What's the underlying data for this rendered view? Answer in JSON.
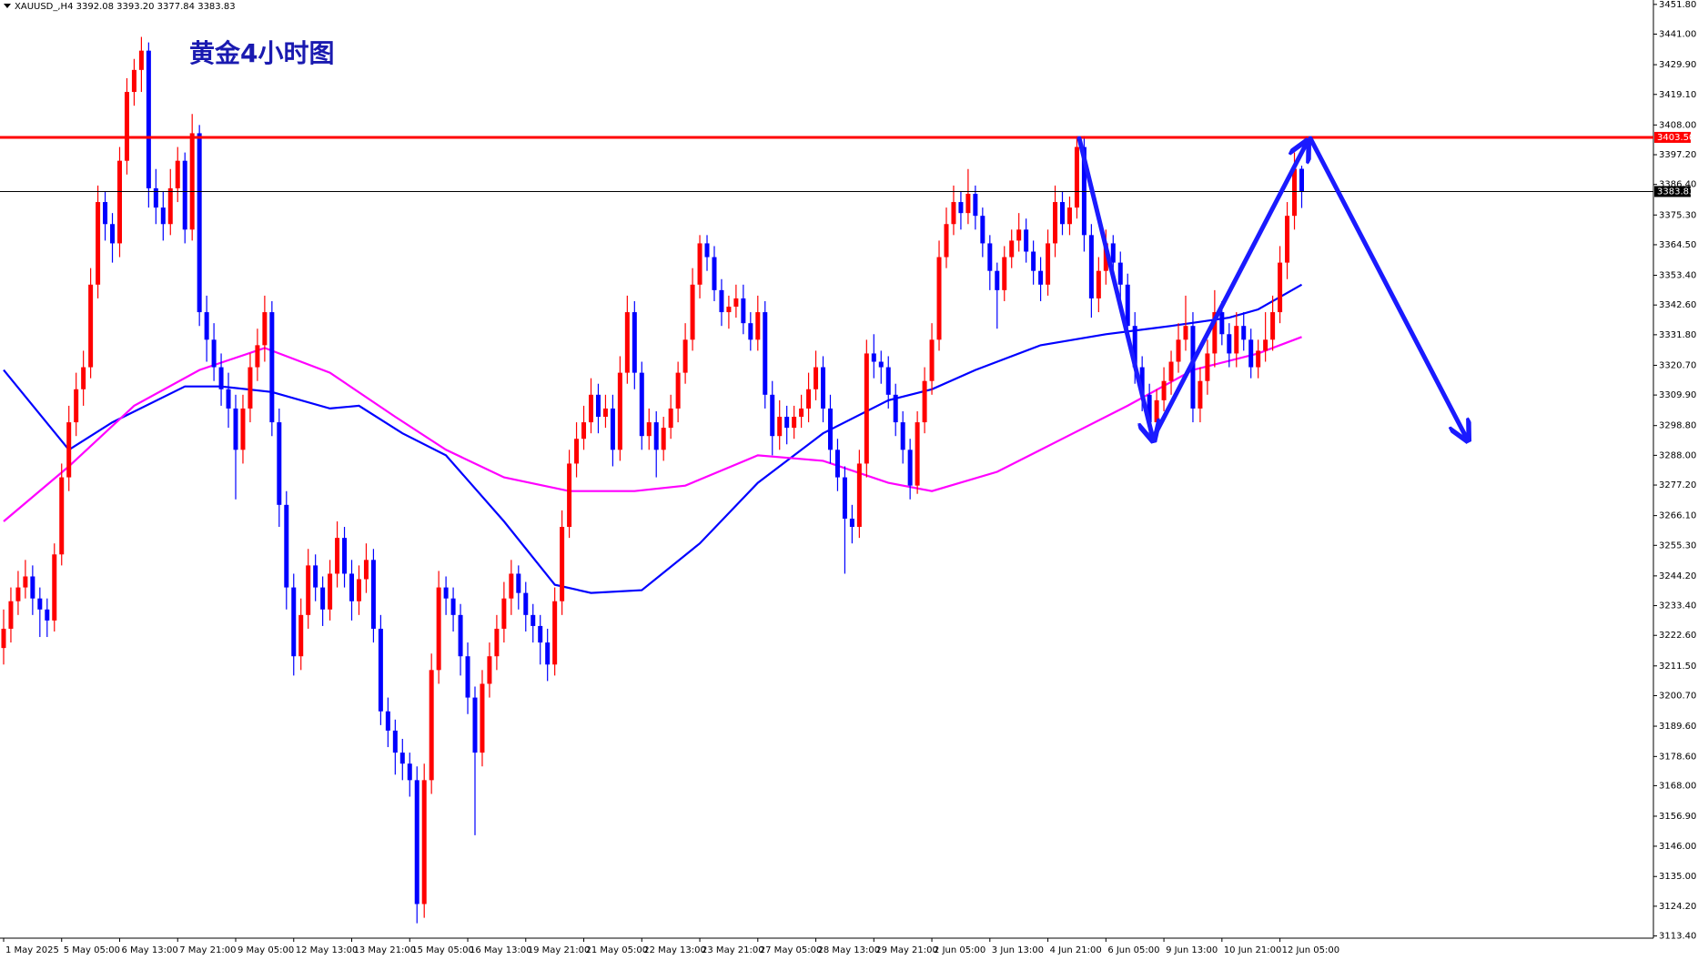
{
  "chart_data": {
    "type": "candlestick",
    "header": "XAUUSD_,H4  3392.08 3393.20 3377.84 3383.83",
    "title": "黄金4小时图",
    "up_color": "#ff0000",
    "down_color": "#0000ff",
    "ohlc": [
      [
        3218,
        3232,
        3212,
        3225
      ],
      [
        3225,
        3240,
        3220,
        3235
      ],
      [
        3235,
        3246,
        3230,
        3240
      ],
      [
        3240,
        3250,
        3236,
        3244
      ],
      [
        3244,
        3248,
        3230,
        3236
      ],
      [
        3236,
        3240,
        3222,
        3232
      ],
      [
        3232,
        3236,
        3222,
        3228
      ],
      [
        3228,
        3256,
        3224,
        3252
      ],
      [
        3252,
        3285,
        3248,
        3280
      ],
      [
        3280,
        3306,
        3275,
        3300
      ],
      [
        3300,
        3318,
        3295,
        3312
      ],
      [
        3312,
        3326,
        3306,
        3320
      ],
      [
        3320,
        3356,
        3316,
        3350
      ],
      [
        3350,
        3386,
        3345,
        3380
      ],
      [
        3380,
        3384,
        3366,
        3372
      ],
      [
        3372,
        3376,
        3358,
        3365
      ],
      [
        3365,
        3400,
        3360,
        3395
      ],
      [
        3395,
        3425,
        3390,
        3420
      ],
      [
        3420,
        3432,
        3415,
        3428
      ],
      [
        3428,
        3440,
        3420,
        3435
      ],
      [
        3435,
        3438,
        3378,
        3385
      ],
      [
        3385,
        3392,
        3372,
        3378
      ],
      [
        3378,
        3384,
        3366,
        3372
      ],
      [
        3372,
        3392,
        3368,
        3385
      ],
      [
        3385,
        3400,
        3380,
        3395
      ],
      [
        3395,
        3398,
        3365,
        3370
      ],
      [
        3370,
        3412,
        3366,
        3405
      ],
      [
        3405,
        3408,
        3335,
        3340
      ],
      [
        3340,
        3346,
        3322,
        3330
      ],
      [
        3330,
        3336,
        3315,
        3320
      ],
      [
        3320,
        3325,
        3306,
        3312
      ],
      [
        3312,
        3318,
        3298,
        3305
      ],
      [
        3305,
        3310,
        3272,
        3290
      ],
      [
        3290,
        3310,
        3285,
        3305
      ],
      [
        3305,
        3325,
        3300,
        3320
      ],
      [
        3320,
        3334,
        3315,
        3328
      ],
      [
        3328,
        3346,
        3322,
        3340
      ],
      [
        3340,
        3344,
        3295,
        3300
      ],
      [
        3300,
        3305,
        3262,
        3270
      ],
      [
        3270,
        3275,
        3232,
        3240
      ],
      [
        3240,
        3245,
        3208,
        3215
      ],
      [
        3215,
        3236,
        3210,
        3230
      ],
      [
        3230,
        3254,
        3225,
        3248
      ],
      [
        3248,
        3252,
        3235,
        3240
      ],
      [
        3240,
        3244,
        3226,
        3232
      ],
      [
        3232,
        3250,
        3228,
        3245
      ],
      [
        3245,
        3264,
        3240,
        3258
      ],
      [
        3258,
        3262,
        3240,
        3245
      ],
      [
        3245,
        3250,
        3228,
        3235
      ],
      [
        3235,
        3248,
        3230,
        3243
      ],
      [
        3243,
        3256,
        3238,
        3250
      ],
      [
        3250,
        3254,
        3220,
        3225
      ],
      [
        3225,
        3230,
        3190,
        3195
      ],
      [
        3195,
        3200,
        3182,
        3188
      ],
      [
        3188,
        3192,
        3172,
        3180
      ],
      [
        3180,
        3185,
        3170,
        3176
      ],
      [
        3176,
        3180,
        3164,
        3170
      ],
      [
        3170,
        3175,
        3118,
        3125
      ],
      [
        3125,
        3176,
        3120,
        3170
      ],
      [
        3170,
        3216,
        3165,
        3210
      ],
      [
        3210,
        3246,
        3205,
        3240
      ],
      [
        3240,
        3244,
        3230,
        3236
      ],
      [
        3236,
        3240,
        3224,
        3230
      ],
      [
        3230,
        3234,
        3208,
        3215
      ],
      [
        3215,
        3220,
        3194,
        3200
      ],
      [
        3200,
        3204,
        3150,
        3180
      ],
      [
        3180,
        3210,
        3175,
        3205
      ],
      [
        3205,
        3220,
        3200,
        3215
      ],
      [
        3215,
        3230,
        3210,
        3225
      ],
      [
        3225,
        3242,
        3220,
        3236
      ],
      [
        3236,
        3250,
        3230,
        3245
      ],
      [
        3245,
        3248,
        3232,
        3238
      ],
      [
        3238,
        3242,
        3224,
        3230
      ],
      [
        3230,
        3234,
        3220,
        3226
      ],
      [
        3226,
        3230,
        3212,
        3220
      ],
      [
        3220,
        3225,
        3206,
        3212
      ],
      [
        3212,
        3240,
        3208,
        3235
      ],
      [
        3235,
        3268,
        3230,
        3262
      ],
      [
        3262,
        3290,
        3258,
        3285
      ],
      [
        3285,
        3300,
        3280,
        3294
      ],
      [
        3294,
        3306,
        3290,
        3300
      ],
      [
        3300,
        3316,
        3296,
        3310
      ],
      [
        3310,
        3314,
        3296,
        3302
      ],
      [
        3302,
        3310,
        3298,
        3305
      ],
      [
        3305,
        3310,
        3284,
        3290
      ],
      [
        3290,
        3324,
        3286,
        3318
      ],
      [
        3318,
        3346,
        3314,
        3340
      ],
      [
        3340,
        3344,
        3312,
        3318
      ],
      [
        3318,
        3322,
        3290,
        3295
      ],
      [
        3295,
        3305,
        3290,
        3300
      ],
      [
        3300,
        3304,
        3280,
        3290
      ],
      [
        3290,
        3302,
        3286,
        3298
      ],
      [
        3298,
        3310,
        3294,
        3305
      ],
      [
        3305,
        3322,
        3300,
        3318
      ],
      [
        3318,
        3336,
        3314,
        3330
      ],
      [
        3330,
        3356,
        3326,
        3350
      ],
      [
        3350,
        3368,
        3345,
        3365
      ],
      [
        3365,
        3368,
        3355,
        3360
      ],
      [
        3360,
        3364,
        3344,
        3348
      ],
      [
        3348,
        3352,
        3335,
        3340
      ],
      [
        3340,
        3346,
        3334,
        3342
      ],
      [
        3342,
        3350,
        3338,
        3345
      ],
      [
        3345,
        3350,
        3332,
        3336
      ],
      [
        3336,
        3340,
        3326,
        3330
      ],
      [
        3330,
        3346,
        3326,
        3340
      ],
      [
        3340,
        3344,
        3305,
        3310
      ],
      [
        3310,
        3315,
        3288,
        3295
      ],
      [
        3295,
        3308,
        3290,
        3302
      ],
      [
        3302,
        3306,
        3292,
        3298
      ],
      [
        3298,
        3306,
        3294,
        3302
      ],
      [
        3302,
        3310,
        3298,
        3305
      ],
      [
        3305,
        3318,
        3300,
        3312
      ],
      [
        3312,
        3326,
        3308,
        3320
      ],
      [
        3320,
        3324,
        3300,
        3305
      ],
      [
        3305,
        3310,
        3285,
        3290
      ],
      [
        3290,
        3294,
        3275,
        3280
      ],
      [
        3280,
        3284,
        3245,
        3265
      ],
      [
        3265,
        3270,
        3256,
        3262
      ],
      [
        3262,
        3290,
        3258,
        3285
      ],
      [
        3285,
        3330,
        3280,
        3325
      ],
      [
        3325,
        3332,
        3316,
        3322
      ],
      [
        3322,
        3326,
        3314,
        3320
      ],
      [
        3320,
        3324,
        3305,
        3310
      ],
      [
        3310,
        3314,
        3295,
        3300
      ],
      [
        3300,
        3304,
        3285,
        3290
      ],
      [
        3290,
        3294,
        3272,
        3277
      ],
      [
        3277,
        3304,
        3274,
        3300
      ],
      [
        3300,
        3320,
        3296,
        3315
      ],
      [
        3315,
        3336,
        3310,
        3330
      ],
      [
        3330,
        3366,
        3326,
        3360
      ],
      [
        3360,
        3378,
        3356,
        3372
      ],
      [
        3372,
        3386,
        3368,
        3380
      ],
      [
        3380,
        3384,
        3370,
        3376
      ],
      [
        3376,
        3392,
        3372,
        3383
      ],
      [
        3383,
        3386,
        3370,
        3375
      ],
      [
        3375,
        3378,
        3360,
        3365
      ],
      [
        3365,
        3368,
        3348,
        3355
      ],
      [
        3355,
        3358,
        3334,
        3348
      ],
      [
        3348,
        3364,
        3344,
        3360
      ],
      [
        3360,
        3370,
        3356,
        3366
      ],
      [
        3366,
        3376,
        3362,
        3370
      ],
      [
        3370,
        3374,
        3358,
        3362
      ],
      [
        3362,
        3366,
        3350,
        3355
      ],
      [
        3355,
        3360,
        3344,
        3350
      ],
      [
        3350,
        3370,
        3346,
        3365
      ],
      [
        3365,
        3386,
        3360,
        3380
      ],
      [
        3380,
        3384,
        3368,
        3372
      ],
      [
        3372,
        3382,
        3368,
        3378
      ],
      [
        3378,
        3404,
        3374,
        3400
      ],
      [
        3400,
        3404,
        3362,
        3368
      ],
      [
        3368,
        3372,
        3338,
        3345
      ],
      [
        3345,
        3360,
        3340,
        3355
      ],
      [
        3355,
        3370,
        3350,
        3365
      ],
      [
        3365,
        3368,
        3352,
        3358
      ],
      [
        3358,
        3362,
        3344,
        3350
      ],
      [
        3350,
        3354,
        3330,
        3335
      ],
      [
        3335,
        3340,
        3314,
        3320
      ],
      [
        3320,
        3324,
        3304,
        3310
      ],
      [
        3310,
        3314,
        3296,
        3300
      ],
      [
        3300,
        3312,
        3296,
        3308
      ],
      [
        3308,
        3320,
        3304,
        3315
      ],
      [
        3315,
        3326,
        3310,
        3322
      ],
      [
        3322,
        3336,
        3318,
        3330
      ],
      [
        3330,
        3346,
        3326,
        3335
      ],
      [
        3335,
        3340,
        3300,
        3305
      ],
      [
        3305,
        3320,
        3300,
        3315
      ],
      [
        3315,
        3330,
        3310,
        3325
      ],
      [
        3325,
        3348,
        3320,
        3340
      ],
      [
        3340,
        3344,
        3328,
        3332
      ],
      [
        3332,
        3336,
        3320,
        3325
      ],
      [
        3325,
        3340,
        3320,
        3335
      ],
      [
        3335,
        3340,
        3326,
        3330
      ],
      [
        3330,
        3334,
        3316,
        3320
      ],
      [
        3320,
        3330,
        3316,
        3326
      ],
      [
        3326,
        3340,
        3322,
        3330
      ],
      [
        3330,
        3346,
        3326,
        3340
      ],
      [
        3340,
        3364,
        3336,
        3358
      ],
      [
        3358,
        3380,
        3352,
        3375
      ],
      [
        3375,
        3398,
        3370,
        3392.08
      ],
      [
        3392.08,
        3393.2,
        3377.84,
        3383.83
      ]
    ],
    "lines": [
      {
        "color": "#0000ff",
        "x": [
          0,
          9,
          15,
          25,
          30,
          37,
          45,
          49,
          55,
          61,
          69,
          76,
          81,
          88,
          96,
          104,
          113,
          122,
          128,
          134,
          143,
          152,
          161,
          169,
          173,
          179
        ],
        "values": [
          3319,
          3290,
          3300,
          3313,
          3313,
          3311,
          3305,
          3306,
          3296,
          3288,
          3264,
          3241,
          3238,
          3239,
          3256,
          3278,
          3296,
          3308,
          3312,
          3319,
          3328,
          3332,
          3335,
          3338,
          3341,
          3350
        ]
      },
      {
        "color": "#ff00ff",
        "x": [
          0,
          9,
          18,
          27,
          36,
          45,
          54,
          61,
          69,
          78,
          87,
          94,
          104,
          113,
          122,
          128,
          137,
          146,
          155,
          164,
          173,
          179
        ],
        "values": [
          3264,
          3284,
          3306,
          3319,
          3327,
          3318,
          3302,
          3290,
          3280,
          3275,
          3275,
          3277,
          3288,
          3286,
          3278,
          3275,
          3282,
          3294,
          3306,
          3319,
          3325,
          3331
        ]
      }
    ],
    "levels": [
      {
        "value": 3403.5,
        "label": "3403.50",
        "color": "#ff0000"
      },
      {
        "value": 3383.83,
        "label": "3383.83",
        "color": "#000000"
      }
    ],
    "xlim": [
      -0.5,
      227.5
    ],
    "xticks": [
      {
        "value": 0,
        "label": "1 May 2025"
      },
      {
        "value": 8,
        "label": "5 May 05:00"
      },
      {
        "value": 16,
        "label": "6 May 13:00"
      },
      {
        "value": 24,
        "label": "7 May 21:00"
      },
      {
        "value": 32,
        "label": "9 May 05:00"
      },
      {
        "value": 40,
        "label": "12 May 13:00"
      },
      {
        "value": 48,
        "label": "13 May 21:00"
      },
      {
        "value": 56,
        "label": "15 May 05:00"
      },
      {
        "value": 64,
        "label": "16 May 13:00"
      },
      {
        "value": 72,
        "label": "19 May 21:00"
      },
      {
        "value": 80,
        "label": "21 May 05:00"
      },
      {
        "value": 88,
        "label": "22 May 13:00"
      },
      {
        "value": 96,
        "label": "23 May 21:00"
      },
      {
        "value": 104,
        "label": "27 May 05:00"
      },
      {
        "value": 112,
        "label": "28 May 13:00"
      },
      {
        "value": 120,
        "label": "29 May 21:00"
      },
      {
        "value": 128,
        "label": "2 Jun 05:00"
      },
      {
        "value": 136,
        "label": "3 Jun 13:00"
      },
      {
        "value": 144,
        "label": "4 Jun 21:00"
      },
      {
        "value": 152,
        "label": "6 Jun 05:00"
      },
      {
        "value": 160,
        "label": "9 Jun 13:00"
      },
      {
        "value": 168,
        "label": "10 Jun 21:00"
      },
      {
        "value": 176,
        "label": "12 Jun 05:00"
      }
    ],
    "ylim": [
      3112.6,
      3453.4
    ],
    "yticks": [
      {
        "value": 3113.4,
        "label": "3113.40"
      },
      {
        "value": 3124.2,
        "label": "3124.20"
      },
      {
        "value": 3135,
        "label": "3135.00"
      },
      {
        "value": 3146,
        "label": "3146.00"
      },
      {
        "value": 3156.9,
        "label": "3156.90"
      },
      {
        "value": 3168,
        "label": "3168.00"
      },
      {
        "value": 3178.6,
        "label": "3178.60"
      },
      {
        "value": 3189.6,
        "label": "3189.60"
      },
      {
        "value": 3200.7,
        "label": "3200.70"
      },
      {
        "value": 3211.5,
        "label": "3211.50"
      },
      {
        "value": 3222.6,
        "label": "3222.60"
      },
      {
        "value": 3233.4,
        "label": "3233.40"
      },
      {
        "value": 3244.2,
        "label": "3244.20"
      },
      {
        "value": 3255.3,
        "label": "3255.30"
      },
      {
        "value": 3266.1,
        "label": "3266.10"
      },
      {
        "value": 3277.2,
        "label": "3277.20"
      },
      {
        "value": 3288,
        "label": "3288.00"
      },
      {
        "value": 3298.8,
        "label": "3298.80"
      },
      {
        "value": 3309.9,
        "label": "3309.90"
      },
      {
        "value": 3320.7,
        "label": "3320.70"
      },
      {
        "value": 3331.8,
        "label": "3331.80"
      },
      {
        "value": 3342.6,
        "label": "3342.60"
      },
      {
        "value": 3353.4,
        "label": "3353.40"
      },
      {
        "value": 3364.5,
        "label": "3364.50"
      },
      {
        "value": 3375.3,
        "label": "3375.30"
      },
      {
        "value": 3386.4,
        "label": "3386.40"
      },
      {
        "value": 3397.2,
        "label": "3397.20"
      },
      {
        "value": 3408,
        "label": "3408.00"
      },
      {
        "value": 3419.1,
        "label": "3419.10"
      },
      {
        "value": 3429.9,
        "label": "3429.90"
      },
      {
        "value": 3441,
        "label": "3441.00"
      },
      {
        "value": 3451.8,
        "label": "3451.80"
      }
    ]
  }
}
